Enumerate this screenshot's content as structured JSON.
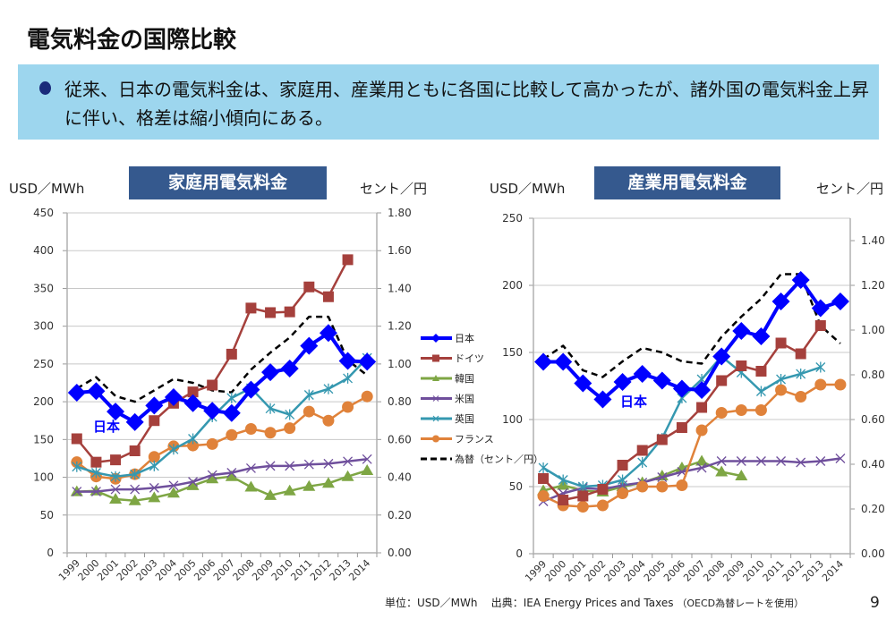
{
  "page": {
    "title": "電気料金の国際比較",
    "bullet_text": "従来、日本の電気料金は、家庭用、産業用ともに各国に比較して高かったが、諸外国の電気料金上昇に伴い、格差は縮小傾向にある。",
    "footer_unit": "単位：USD／MWh",
    "footer_source": "出典：IEA  Energy Prices and Taxes",
    "footer_note": "（OECD為替レートを使用）",
    "page_number": "9"
  },
  "colors": {
    "japan": "#0000ff",
    "germany": "#a5403c",
    "korea": "#7ea644",
    "usa": "#6f4f9c",
    "uk": "#3598b0",
    "france": "#e0823a",
    "fx": "#000000",
    "title_box": "#35598e",
    "banner": "#9dd6ee"
  },
  "chart_data": [
    {
      "type": "line",
      "title": "家庭用電気料金",
      "ylabel": "USD／MWh",
      "y2label": "セント／円",
      "ylim": [
        0,
        450
      ],
      "y2lim": [
        0,
        1.8
      ],
      "yticks": [
        "0",
        "50",
        "100",
        "150",
        "200",
        "250",
        "300",
        "350",
        "400",
        "450"
      ],
      "y2ticks": [
        "0.00",
        "0.20",
        "0.40",
        "0.60",
        "0.80",
        "1.00",
        "1.20",
        "1.40",
        "1.60",
        "1.80"
      ],
      "categories": [
        "1999",
        "2000",
        "2001",
        "2002",
        "2003",
        "2004",
        "2005",
        "2006",
        "2007",
        "2008",
        "2009",
        "2010",
        "2011",
        "2012",
        "2013",
        "2014"
      ],
      "grid": true,
      "legend_position": "right",
      "annotation": "日本",
      "series": [
        {
          "name": "日本",
          "key": "japan",
          "marker": "diamond",
          "values": [
            212,
            214,
            187,
            173,
            195,
            206,
            198,
            188,
            185,
            216,
            239,
            244,
            274,
            291,
            254,
            253
          ]
        },
        {
          "name": "ドイツ",
          "key": "germany",
          "marker": "square",
          "values": [
            151,
            120,
            123,
            135,
            175,
            198,
            213,
            222,
            263,
            324,
            318,
            319,
            352,
            339,
            388,
            null
          ]
        },
        {
          "name": "韓国",
          "key": "korea",
          "marker": "triangle",
          "values": [
            81,
            82,
            71,
            69,
            73,
            79,
            89,
            98,
            101,
            87,
            76,
            82,
            88,
            92,
            101,
            109
          ]
        },
        {
          "name": "米国",
          "key": "usa",
          "marker": "x",
          "values": [
            81,
            81,
            84,
            84,
            86,
            89,
            94,
            103,
            106,
            112,
            115,
            115,
            117,
            118,
            121,
            124
          ]
        },
        {
          "name": "英国",
          "key": "uk",
          "marker": "star",
          "values": [
            114,
            106,
            101,
            104,
            115,
            137,
            151,
            180,
            205,
            218,
            191,
            183,
            209,
            217,
            231,
            258
          ]
        },
        {
          "name": "フランス",
          "key": "france",
          "marker": "circle",
          "values": [
            120,
            101,
            98,
            104,
            127,
            141,
            142,
            144,
            156,
            164,
            159,
            165,
            187,
            175,
            193,
            207
          ]
        },
        {
          "name": "為替（セント／円）",
          "key": "fx",
          "marker": "none",
          "dashed": true,
          "axis": "y2",
          "values": [
            0.87,
            0.93,
            0.83,
            0.8,
            0.86,
            0.92,
            0.9,
            0.86,
            0.85,
            0.97,
            1.06,
            1.14,
            1.25,
            1.25,
            1.02,
            0.94
          ]
        }
      ]
    },
    {
      "type": "line",
      "title": "産業用電気料金",
      "ylabel": "USD／MWh",
      "y2label": "セント／円",
      "ylim": [
        0,
        250
      ],
      "y2lim": [
        0,
        1.5
      ],
      "yticks": [
        "0",
        "50",
        "100",
        "150",
        "200",
        "250"
      ],
      "y2ticks": [
        "0.00",
        "0.20",
        "0.40",
        "0.60",
        "0.80",
        "1.00",
        "1.20",
        "1.40"
      ],
      "categories": [
        "1999",
        "2000",
        "2001",
        "2002",
        "2003",
        "2004",
        "2005",
        "2006",
        "2007",
        "2008",
        "2009",
        "2010",
        "2011",
        "2012",
        "2013",
        "2014"
      ],
      "grid": true,
      "annotation": "日本",
      "series": [
        {
          "name": "日本",
          "key": "japan",
          "marker": "diamond",
          "values": [
            143,
            143,
            127,
            115,
            128,
            134,
            129,
            123,
            122,
            147,
            166,
            162,
            188,
            204,
            183,
            188
          ]
        },
        {
          "name": "ドイツ",
          "key": "germany",
          "marker": "square",
          "values": [
            56,
            40,
            43,
            48,
            66,
            77,
            85,
            94,
            109,
            129,
            140,
            136,
            157,
            149,
            170,
            null
          ]
        },
        {
          "name": "韓国",
          "key": "korea",
          "marker": "triangle",
          "values": [
            47,
            51,
            47,
            46,
            50,
            53,
            58,
            64,
            69,
            61,
            58,
            null,
            null,
            null,
            null,
            null
          ]
        },
        {
          "name": "米国",
          "key": "usa",
          "marker": "x",
          "values": [
            39,
            45,
            49,
            48,
            51,
            53,
            57,
            61,
            64,
            69,
            69,
            69,
            69,
            68,
            69,
            71
          ]
        },
        {
          "name": "英国",
          "key": "uk",
          "marker": "star",
          "values": [
            64,
            55,
            50,
            51,
            55,
            68,
            86,
            116,
            130,
            147,
            135,
            121,
            130,
            134,
            139,
            null
          ]
        },
        {
          "name": "フランス",
          "key": "france",
          "marker": "circle",
          "values": [
            43,
            36,
            35,
            36,
            45,
            50,
            50,
            51,
            92,
            105,
            107,
            107,
            122,
            117,
            126,
            126
          ]
        },
        {
          "name": "為替（セント／円）",
          "key": "fx",
          "marker": "none",
          "dashed": true,
          "axis": "y2",
          "values": [
            0.87,
            0.93,
            0.82,
            0.79,
            0.86,
            0.92,
            0.9,
            0.86,
            0.85,
            0.97,
            1.06,
            1.14,
            1.25,
            1.25,
            1.02,
            0.94
          ]
        }
      ]
    }
  ]
}
